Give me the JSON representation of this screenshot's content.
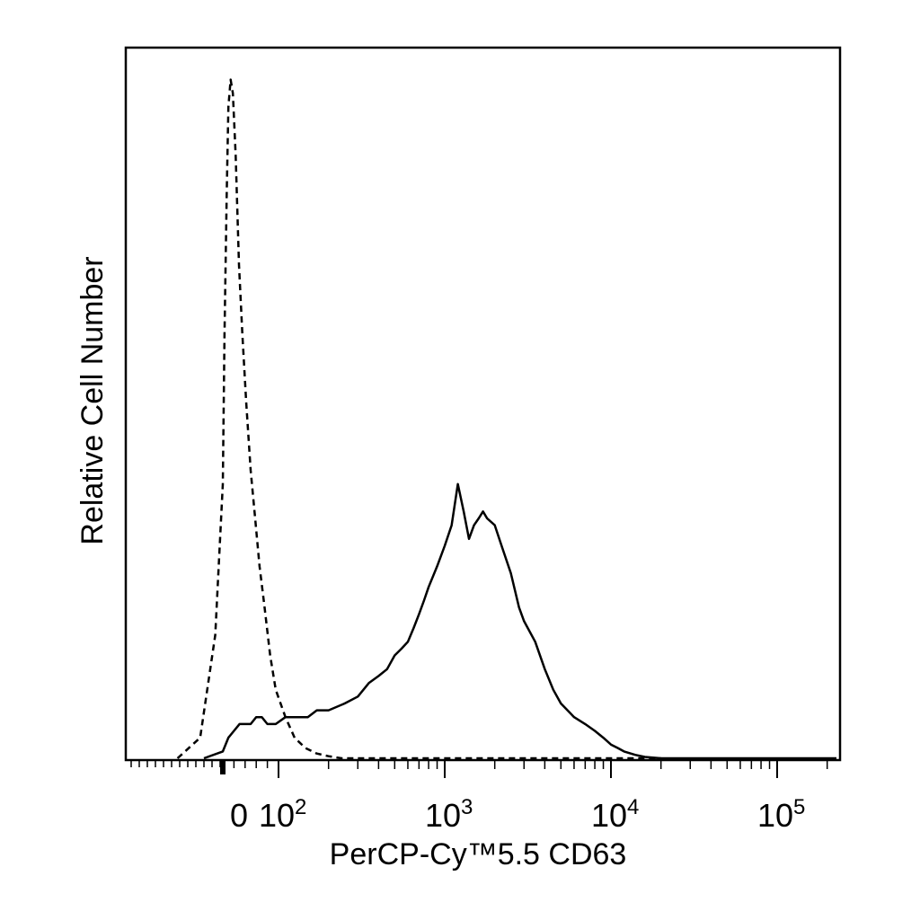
{
  "chart_data": {
    "type": "line",
    "title": "",
    "xlabel": "PerCP-Cy™5.5 CD63",
    "ylabel": "Relative Cell Number",
    "x_scale": "biexponential",
    "xlim": [
      -20,
      250000
    ],
    "ylim": [
      0,
      100
    ],
    "grid": false,
    "x_tick_labels": [
      {
        "value": 0,
        "base": "0",
        "exp": ""
      },
      {
        "value": 100,
        "base": "10",
        "exp": "2"
      },
      {
        "value": 1000,
        "base": "10",
        "exp": "3"
      },
      {
        "value": 10000,
        "base": "10",
        "exp": "4"
      },
      {
        "value": 100000,
        "base": "10",
        "exp": "5"
      }
    ],
    "series": [
      {
        "style": "dashed",
        "x": [
          -12,
          -6,
          -2,
          0,
          3,
          7,
          10,
          14,
          18,
          23,
          29,
          35,
          42,
          50,
          58,
          66,
          75,
          85,
          95,
          110,
          125,
          145,
          170,
          200,
          240,
          300,
          400,
          600,
          1000,
          3000,
          10000,
          20000
        ],
        "y": [
          0,
          3,
          18,
          40,
          62,
          82,
          95,
          99,
          97,
          88,
          72,
          62,
          52,
          42,
          35,
          28,
          22,
          15,
          10,
          6,
          3,
          1.5,
          0.7,
          0.3,
          0,
          0,
          0,
          0,
          0,
          0,
          0,
          0
        ]
      },
      {
        "style": "solid",
        "x": [
          -5,
          0,
          10,
          20,
          30,
          40,
          50,
          60,
          70,
          80,
          95,
          110,
          130,
          150,
          170,
          200,
          250,
          300,
          350,
          400,
          450,
          500,
          550,
          600,
          650,
          700,
          750,
          800,
          900,
          1000,
          1100,
          1200,
          1300,
          1400,
          1500,
          1600,
          1700,
          1800,
          2000,
          2200,
          2500,
          2800,
          3000,
          3500,
          4000,
          4500,
          5000,
          6000,
          7000,
          8000,
          9000,
          10000,
          11000,
          12000,
          14000,
          16000,
          20000,
          50000,
          250000
        ],
        "y": [
          0,
          1,
          3,
          4,
          5,
          5,
          5,
          6,
          6,
          5,
          5,
          6,
          6,
          6,
          7,
          7,
          8,
          9,
          11,
          12,
          13,
          15,
          16,
          17,
          19,
          21,
          23,
          25,
          28,
          31,
          34,
          40,
          36,
          32,
          34,
          35,
          36,
          35,
          34,
          31,
          27,
          22,
          20,
          17,
          13,
          10,
          8,
          6,
          5,
          4,
          3,
          2,
          1.5,
          1,
          0.5,
          0.2,
          0,
          0,
          0
        ]
      }
    ]
  }
}
